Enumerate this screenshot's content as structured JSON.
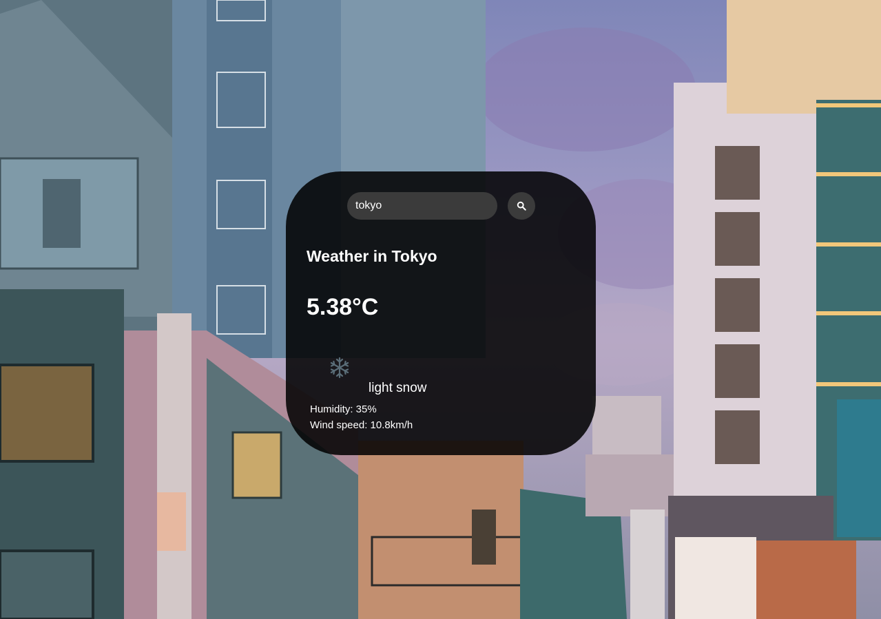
{
  "search": {
    "value": "tokyo",
    "placeholder": "Search",
    "button_icon": "search-icon"
  },
  "weather": {
    "city_heading": "Weather in Tokyo",
    "temperature": "5.38°C",
    "icon": "snowflake-icon",
    "description": "light snow",
    "humidity": "Humidity: 35%",
    "wind_speed": "Wind speed: 10.8km/h"
  },
  "colors": {
    "card_background": "#000000",
    "input_background": "#3b3b3b",
    "text": "#ffffff"
  }
}
